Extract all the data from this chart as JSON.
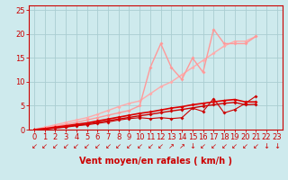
{
  "xlabel": "Vent moyen/en rafales ( km/h )",
  "bg_color": "#ceeaed",
  "grid_color": "#aacdd1",
  "x_ticks": [
    0,
    1,
    2,
    3,
    4,
    5,
    6,
    7,
    8,
    9,
    10,
    11,
    12,
    13,
    14,
    15,
    16,
    17,
    18,
    19,
    20,
    21,
    22,
    23
  ],
  "y_ticks": [
    0,
    5,
    10,
    15,
    20,
    25
  ],
  "xlim": [
    -0.5,
    23.5
  ],
  "ylim": [
    0,
    26
  ],
  "series": [
    {
      "x": [
        0,
        1,
        2,
        3,
        4,
        5,
        6,
        7,
        8,
        9,
        10,
        11,
        12,
        13,
        14,
        15,
        16,
        17,
        18,
        19,
        20,
        21
      ],
      "y": [
        0,
        0.5,
        1.0,
        1.5,
        2.0,
        2.5,
        3.2,
        4.0,
        4.8,
        5.5,
        6.0,
        7.5,
        9.0,
        10.0,
        11.5,
        13.0,
        14.5,
        16.0,
        17.5,
        18.5,
        18.5,
        19.5
      ],
      "color": "#ffaaaa",
      "linewidth": 1.0,
      "marker": "D",
      "markersize": 2.0,
      "zorder": 2
    },
    {
      "x": [
        0,
        1,
        2,
        3,
        4,
        5,
        6,
        7,
        8,
        9,
        10,
        11,
        12,
        13,
        14,
        15,
        16,
        17,
        18,
        19,
        20,
        21
      ],
      "y": [
        0,
        0.3,
        0.7,
        1.1,
        1.5,
        2.0,
        2.5,
        3.0,
        3.5,
        4.0,
        5.0,
        13.0,
        18.0,
        13.0,
        10.5,
        15.0,
        12.0,
        21.0,
        18.0,
        18.0,
        18.0,
        19.5
      ],
      "color": "#ff9999",
      "linewidth": 1.0,
      "marker": "D",
      "markersize": 2.0,
      "zorder": 3
    },
    {
      "x": [
        0,
        1,
        2,
        3,
        4,
        5,
        6,
        7,
        8,
        9,
        10,
        11,
        12,
        13,
        14,
        15,
        16,
        17,
        18,
        19,
        20,
        21
      ],
      "y": [
        0,
        0.2,
        0.5,
        0.8,
        1.1,
        1.4,
        1.8,
        2.2,
        2.6,
        3.0,
        3.4,
        3.7,
        4.1,
        4.5,
        4.8,
        5.2,
        5.5,
        5.8,
        6.1,
        6.3,
        5.8,
        5.8
      ],
      "color": "#dd0000",
      "linewidth": 1.2,
      "marker": "D",
      "markersize": 2.0,
      "zorder": 6
    },
    {
      "x": [
        0,
        1,
        2,
        3,
        4,
        5,
        6,
        7,
        8,
        9,
        10,
        11,
        12,
        13,
        14,
        15,
        16,
        17,
        18,
        19,
        20,
        21
      ],
      "y": [
        0,
        0.15,
        0.35,
        0.6,
        0.9,
        1.15,
        1.5,
        1.85,
        2.2,
        2.55,
        2.9,
        3.2,
        3.55,
        3.9,
        4.2,
        4.55,
        4.9,
        5.2,
        5.5,
        5.7,
        5.2,
        5.3
      ],
      "color": "#cc0000",
      "linewidth": 1.0,
      "marker": "D",
      "markersize": 2.0,
      "zorder": 5
    },
    {
      "x": [
        0,
        1,
        2,
        3,
        4,
        5,
        6,
        7,
        8,
        9,
        10,
        11,
        12,
        13,
        14,
        15,
        16,
        17,
        18,
        19,
        20,
        21
      ],
      "y": [
        0,
        0.1,
        0.3,
        0.5,
        0.8,
        1.0,
        1.3,
        1.6,
        2.0,
        2.3,
        2.5,
        2.3,
        2.5,
        2.3,
        2.5,
        4.5,
        3.8,
        6.5,
        3.5,
        4.2,
        5.5,
        7.0
      ],
      "color": "#cc0000",
      "linewidth": 0.8,
      "marker": "D",
      "markersize": 2.0,
      "zorder": 4
    }
  ],
  "wind_chars": [
    "↙",
    "↙",
    "↙",
    "↙",
    "↙",
    "↙",
    "↙",
    "↙",
    "↙",
    "↙",
    "↙",
    "↙",
    "↙",
    "↗",
    "↗",
    "↓",
    "↙",
    "↙",
    "↙",
    "↙",
    "↙",
    "↙",
    "↓",
    "↓"
  ],
  "wind_color": "#cc0000",
  "axis_color": "#cc0000",
  "tick_color": "#cc0000",
  "label_color": "#cc0000",
  "label_fontsize": 7,
  "tick_fontsize": 6
}
